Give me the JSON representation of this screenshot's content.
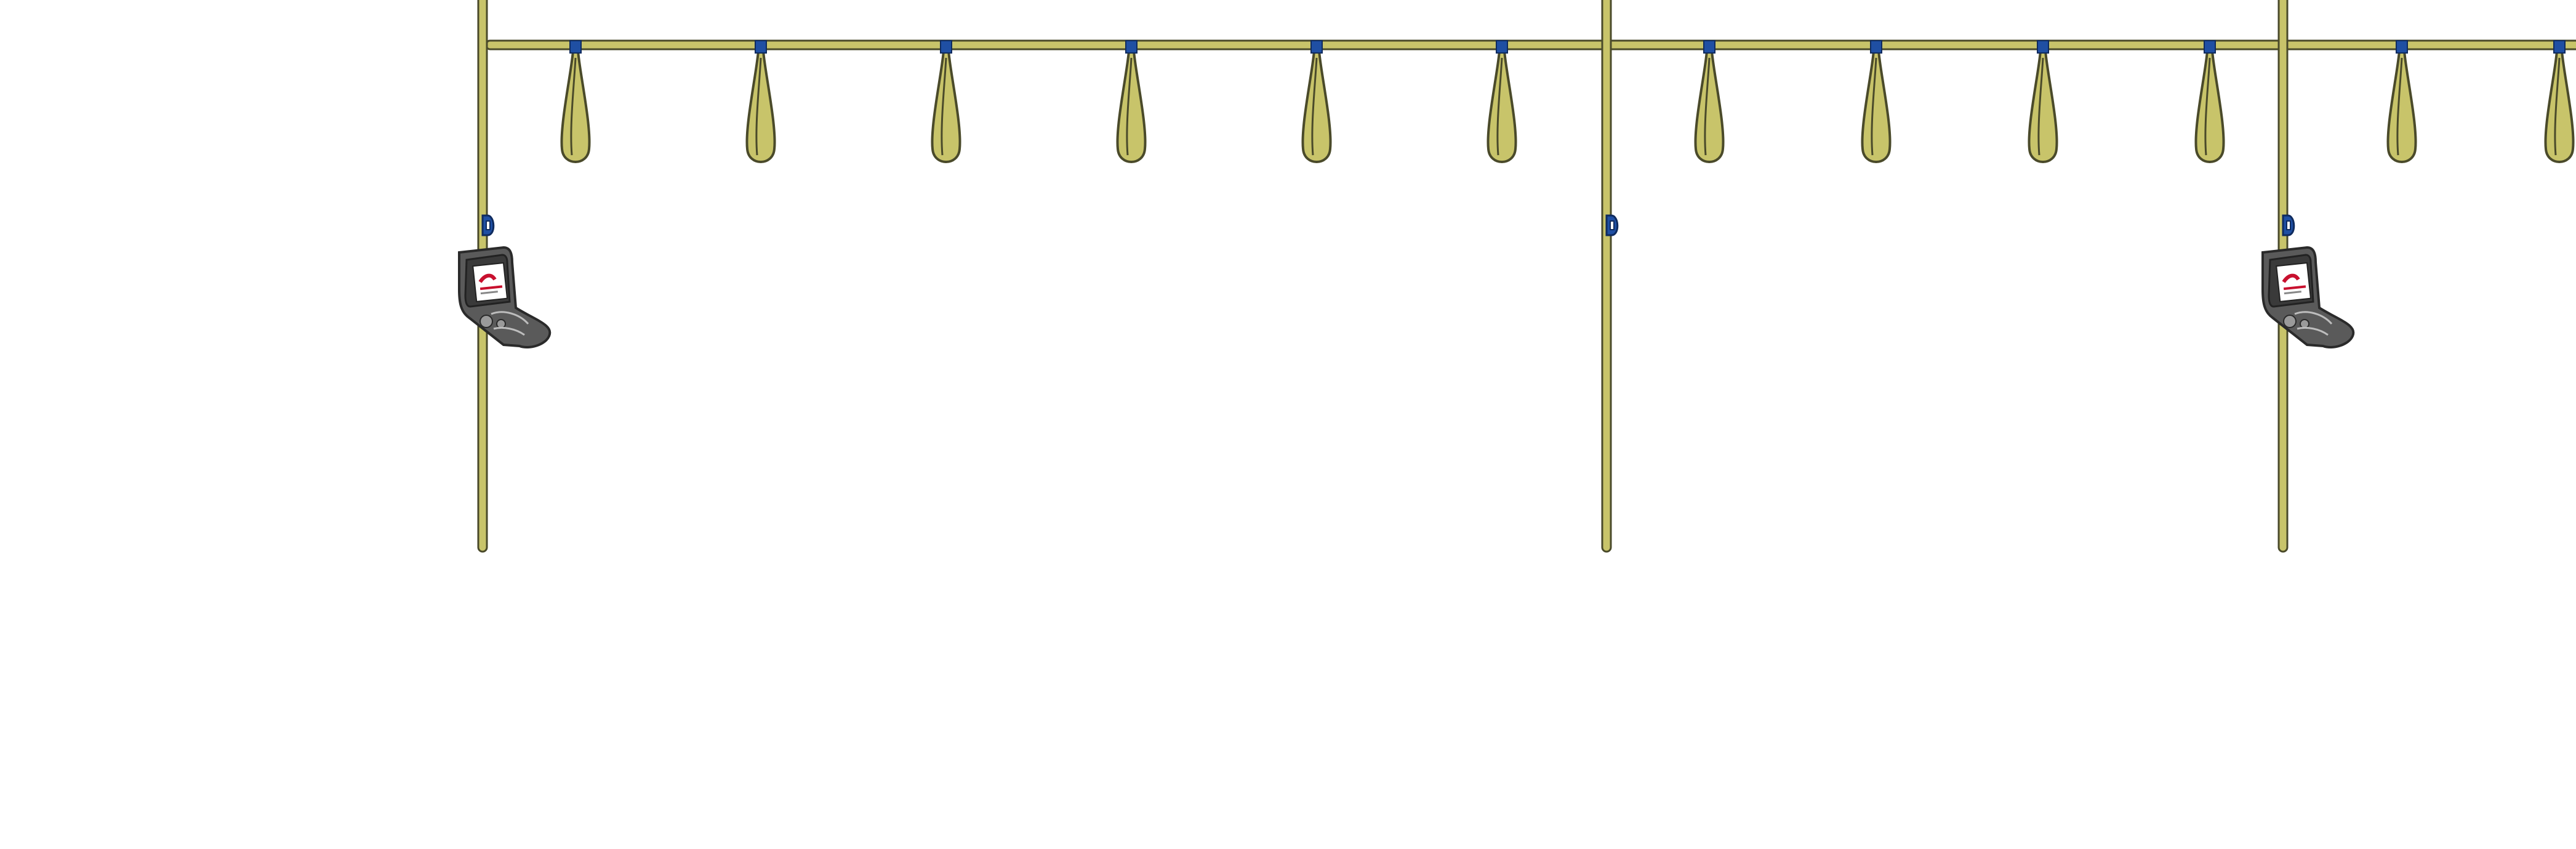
{
  "scene": {
    "colors": {
      "background": "#ffffff",
      "pole_fill": "#c8c46a",
      "pole_stroke": "#4a4a2a",
      "clip_fill": "#1f4fa3",
      "clip_stroke": "#0f2b5e",
      "validator_body": "#5a5a5a",
      "validator_dark": "#3a3a3a",
      "validator_screen": "#ffffff",
      "validator_accent": "#c8102e"
    },
    "icons": {
      "handle": "hand-strap-icon",
      "validator": "ticket-validator-icon",
      "clip": "pole-clip-icon"
    },
    "handle_count": 12,
    "validator_count": 2,
    "vertical_pole_count": 3
  }
}
